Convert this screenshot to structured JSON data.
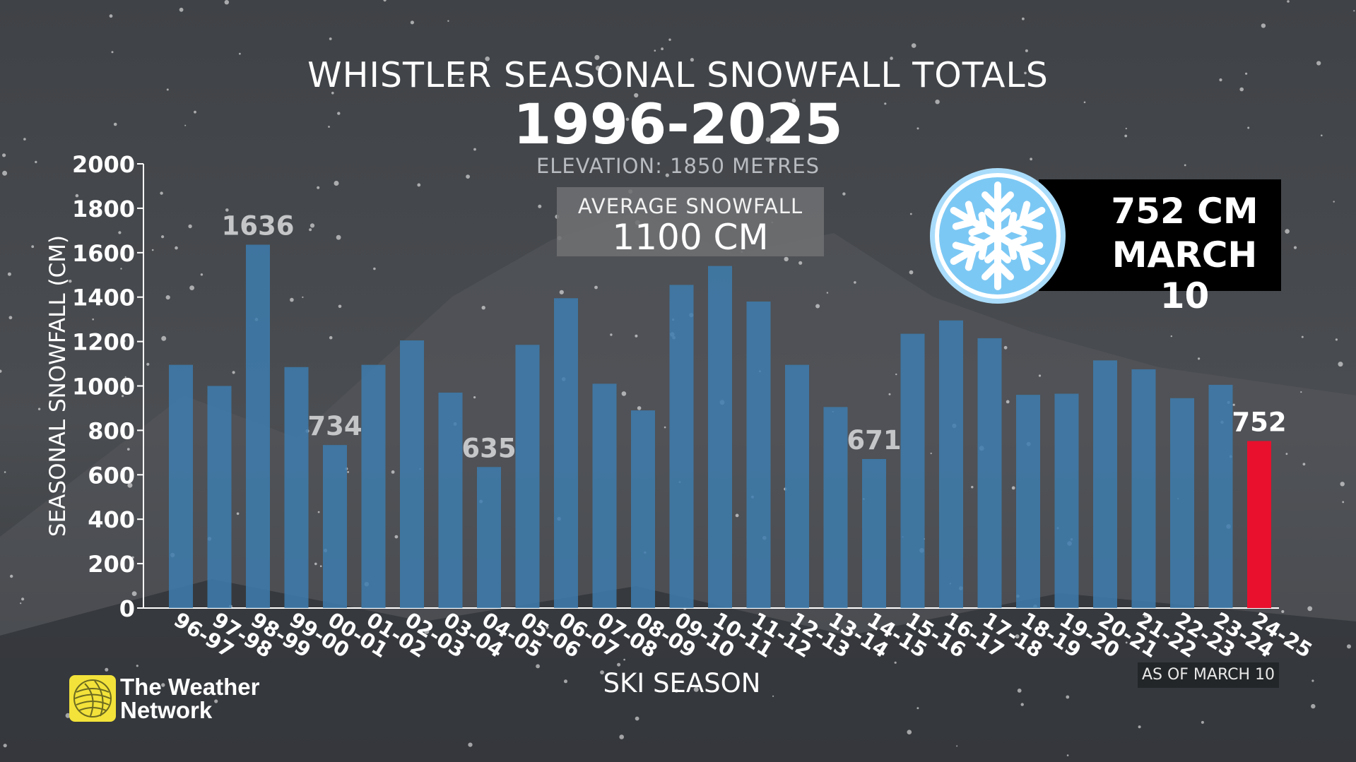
{
  "chart_data": {
    "type": "bar",
    "title": "WHISTLER SEASONAL SNOWFALL TOTALS",
    "subtitle": "1996-2025",
    "note": "ELEVATION: 1850 METRES",
    "xlabel": "SKI SEASON",
    "ylabel": "SEASONAL SNOWFALL (CM)",
    "ylim": [
      0,
      2000
    ],
    "yticks": [
      0,
      200,
      400,
      600,
      800,
      1000,
      1200,
      1400,
      1600,
      1800,
      2000
    ],
    "categories": [
      "96-97",
      "97-98",
      "98-99",
      "99-00",
      "00-01",
      "01-02",
      "02-03",
      "03-04",
      "04-05",
      "05-06",
      "06-07",
      "07-08",
      "08-09",
      "09-10",
      "10-11",
      "11-12",
      "12-13",
      "13-14",
      "14-15",
      "15-16",
      "16-17",
      "17-18",
      "18-19",
      "19-20",
      "20-21",
      "21-22",
      "22-23",
      "23-24",
      "24-25"
    ],
    "values": [
      1095,
      1000,
      1636,
      1085,
      734,
      1095,
      1205,
      970,
      635,
      1185,
      1395,
      1010,
      890,
      1455,
      1540,
      1380,
      1095,
      905,
      671,
      1235,
      1295,
      1215,
      960,
      965,
      1115,
      1075,
      945,
      1005,
      752
    ],
    "data_labels": [
      {
        "category": "98-99",
        "text": "1636"
      },
      {
        "category": "00-01",
        "text": "734"
      },
      {
        "category": "04-05",
        "text": "635"
      },
      {
        "category": "14-15",
        "text": "671"
      },
      {
        "category": "24-25",
        "text": "752"
      }
    ],
    "highlight": {
      "category": "24-25",
      "color": "#e8102d"
    },
    "bar_color": "#3d7cae",
    "average": {
      "label": "AVERAGE SNOWFALL",
      "value_text": "1100 CM",
      "value": 1100
    },
    "grid": false
  },
  "callout": {
    "line1": "752 CM",
    "line2": "MARCH 10",
    "icon": "snowflake-icon",
    "icon_color": "#7cc8f4"
  },
  "footnote": "AS OF MARCH 10",
  "brand": {
    "line1": "The Weather",
    "line2": "Network",
    "icon": "globe-logo-icon",
    "color": "#f2e23a"
  }
}
